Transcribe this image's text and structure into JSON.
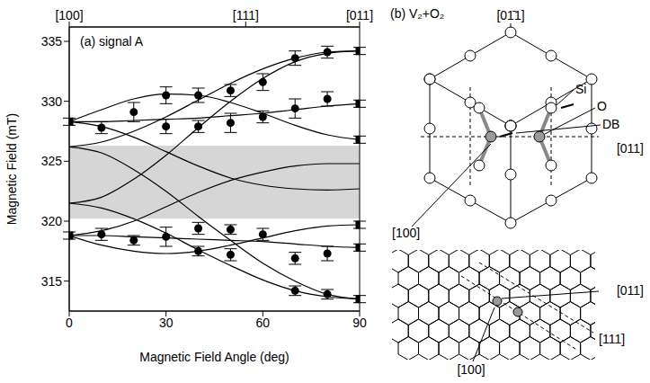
{
  "chart_data": {
    "type": "scatter",
    "title": "(a) signal A",
    "xlabel": "Magnetic Field Angle (deg)",
    "ylabel": "Magnetic Field (mT)",
    "xlim": [
      0,
      90
    ],
    "ylim": [
      312.5,
      336.2
    ],
    "xticks": [
      0,
      30,
      60,
      90
    ],
    "yticks": [
      315,
      320,
      325,
      330,
      335
    ],
    "x2lim": [
      0,
      90
    ],
    "x2ticks": [
      {
        "value": 0,
        "label": "[100]"
      },
      {
        "value": 54.7,
        "label": "[111]"
      },
      {
        "value": 90,
        "label": "[011]"
      }
    ],
    "grid": false,
    "shaded_band": {
      "range": [
        320.2,
        326.3
      ],
      "color": "#c8c8c8"
    },
    "series": [
      {
        "type": "scatter",
        "marker": "square",
        "color": "#000000",
        "x": [
          0,
          0,
          90,
          90,
          90,
          90,
          90,
          90
        ],
        "values": [
          328.3,
          318.8,
          334.2,
          329.8,
          326.8,
          319.7,
          317.8,
          313.5
        ],
        "error": [
          0.3,
          0.3,
          0.3,
          0.3,
          0.3,
          0.3,
          0.3,
          0.3
        ]
      },
      {
        "type": "scatter",
        "marker": "circle",
        "color": "#000000",
        "x": [
          10,
          10,
          20,
          20,
          30,
          30,
          30,
          40,
          40,
          40,
          40,
          50,
          50,
          50,
          50,
          60,
          60,
          60,
          70,
          70,
          70,
          70,
          80,
          80,
          80,
          80
        ],
        "values": [
          327.8,
          318.9,
          329.1,
          318.4,
          330.5,
          327.9,
          318.7,
          330.5,
          327.9,
          319.4,
          317.5,
          330.9,
          328.2,
          319.3,
          317.2,
          331.6,
          328.7,
          318.9,
          333.6,
          329.4,
          316.9,
          314.2,
          334.1,
          330.2,
          317.3,
          313.9
        ],
        "error": [
          0.5,
          0.5,
          0.8,
          0.4,
          0.7,
          0.6,
          0.8,
          0.6,
          0.5,
          0.5,
          0.4,
          0.5,
          0.8,
          0.4,
          0.5,
          0.7,
          0.5,
          0.5,
          0.6,
          0.8,
          0.5,
          0.4,
          0.5,
          0.6,
          0.6,
          0.4
        ]
      },
      {
        "type": "line",
        "line_style": "solid",
        "color": "#000000",
        "x": [
          0,
          10,
          20,
          30,
          40,
          50,
          60,
          70,
          80,
          90
        ],
        "values": [
          328.3,
          328.3,
          328.4,
          328.5,
          328.6,
          328.8,
          329.0,
          329.3,
          329.6,
          329.8
        ]
      },
      {
        "type": "line",
        "line_style": "solid",
        "color": "#000000",
        "x": [
          0,
          10,
          20,
          30,
          40,
          50,
          60,
          70,
          80,
          90
        ],
        "values": [
          328.3,
          329.3,
          330.2,
          330.6,
          330.5,
          329.9,
          329.0,
          328.0,
          327.2,
          326.8
        ]
      },
      {
        "type": "line",
        "line_style": "solid",
        "color": "#000000",
        "x": [
          0,
          10,
          20,
          30,
          40,
          50,
          60,
          70,
          80,
          90
        ],
        "values": [
          326.2,
          326.6,
          327.5,
          328.7,
          330.1,
          331.5,
          332.7,
          333.6,
          334.1,
          334.2
        ]
      },
      {
        "type": "line",
        "line_style": "solid",
        "color": "#000000",
        "x": [
          0,
          10,
          20,
          30,
          40,
          50,
          60,
          70,
          80,
          90
        ],
        "values": [
          321.5,
          322.0,
          323.5,
          325.5,
          327.8,
          330.0,
          331.9,
          333.3,
          334.0,
          334.2
        ]
      },
      {
        "type": "line",
        "line_style": "solid",
        "color": "#000000",
        "x": [
          0,
          10,
          20,
          30,
          40,
          50,
          60,
          70,
          80,
          90
        ],
        "values": [
          318.8,
          318.8,
          318.7,
          318.6,
          318.5,
          318.4,
          318.3,
          318.1,
          317.9,
          317.8
        ]
      },
      {
        "type": "line",
        "line_style": "solid",
        "color": "#000000",
        "x": [
          0,
          10,
          20,
          30,
          40,
          50,
          60,
          70,
          80,
          90
        ],
        "values": [
          318.8,
          318.0,
          317.5,
          317.3,
          317.5,
          318.0,
          318.6,
          319.2,
          319.6,
          319.7
        ]
      },
      {
        "type": "line",
        "line_style": "solid",
        "color": "#000000",
        "x": [
          0,
          10,
          20,
          30,
          40,
          50,
          60,
          70,
          80,
          90
        ],
        "values": [
          321.5,
          321.1,
          320.2,
          319.0,
          317.6,
          316.3,
          315.1,
          314.2,
          313.7,
          313.5
        ]
      },
      {
        "type": "line",
        "line_style": "solid",
        "color": "#000000",
        "x": [
          0,
          10,
          20,
          30,
          40,
          50,
          60,
          70,
          80,
          90
        ],
        "values": [
          326.2,
          325.7,
          324.3,
          322.5,
          320.4,
          318.4,
          316.5,
          315.0,
          313.9,
          313.5
        ]
      },
      {
        "type": "line",
        "line_style": "solid",
        "color": "#000000",
        "x": [
          0,
          10,
          20,
          30,
          40,
          50,
          60,
          70,
          80,
          90
        ],
        "values": [
          328.3,
          327.9,
          327.0,
          325.8,
          324.6,
          323.6,
          323.0,
          322.7,
          322.6,
          322.7
        ]
      },
      {
        "type": "line",
        "line_style": "solid",
        "color": "#000000",
        "x": [
          0,
          10,
          20,
          30,
          40,
          50,
          60,
          70,
          80,
          90
        ],
        "values": [
          318.8,
          319.2,
          320.0,
          321.2,
          322.4,
          323.4,
          324.1,
          324.6,
          324.8,
          324.8
        ]
      }
    ]
  },
  "diagram": {
    "title": "(b) V₂+O₂",
    "upper": {
      "top_axis": "[01̄1]",
      "si": "Si",
      "o": "O",
      "db": "DB",
      "right_axis": "[011]",
      "left_axis": "[100]"
    },
    "lower": {
      "right_axis": "[011]",
      "bottom_axis": "[100]",
      "diagonal_axis": "[111]"
    }
  }
}
